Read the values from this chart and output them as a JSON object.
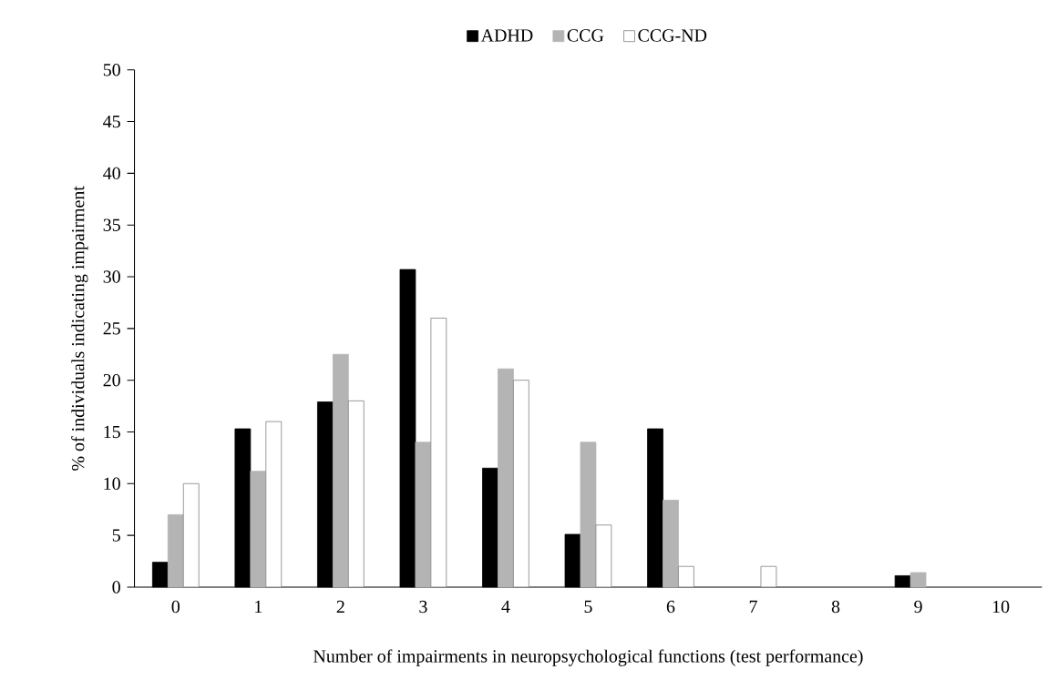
{
  "chart_data": {
    "type": "bar",
    "xlabel": "Number of impairments in neuropsychological functions (test performance)",
    "ylabel": "% of individuals indicating impairment",
    "categories": [
      "0",
      "1",
      "2",
      "3",
      "4",
      "5",
      "6",
      "7",
      "8",
      "9",
      "10"
    ],
    "series": [
      {
        "name": "ADHD",
        "color": "#000000",
        "values": [
          2.4,
          15.3,
          17.9,
          30.7,
          11.5,
          5.1,
          15.3,
          0,
          0,
          1.1,
          0
        ]
      },
      {
        "name": "CCG",
        "color": "#b4b4b4",
        "values": [
          7,
          11.2,
          22.5,
          14,
          21.1,
          14,
          8.4,
          0,
          0,
          1.4,
          0
        ]
      },
      {
        "name": "CCG-ND",
        "color": "#ffffff",
        "values": [
          10,
          16,
          18,
          26,
          20,
          6,
          2,
          2,
          0,
          0,
          0
        ]
      }
    ],
    "ylim": [
      0,
      50
    ],
    "yticks": [
      0,
      5,
      10,
      15,
      20,
      25,
      30,
      35,
      40,
      45,
      50
    ],
    "legend": "top",
    "grid": false
  }
}
